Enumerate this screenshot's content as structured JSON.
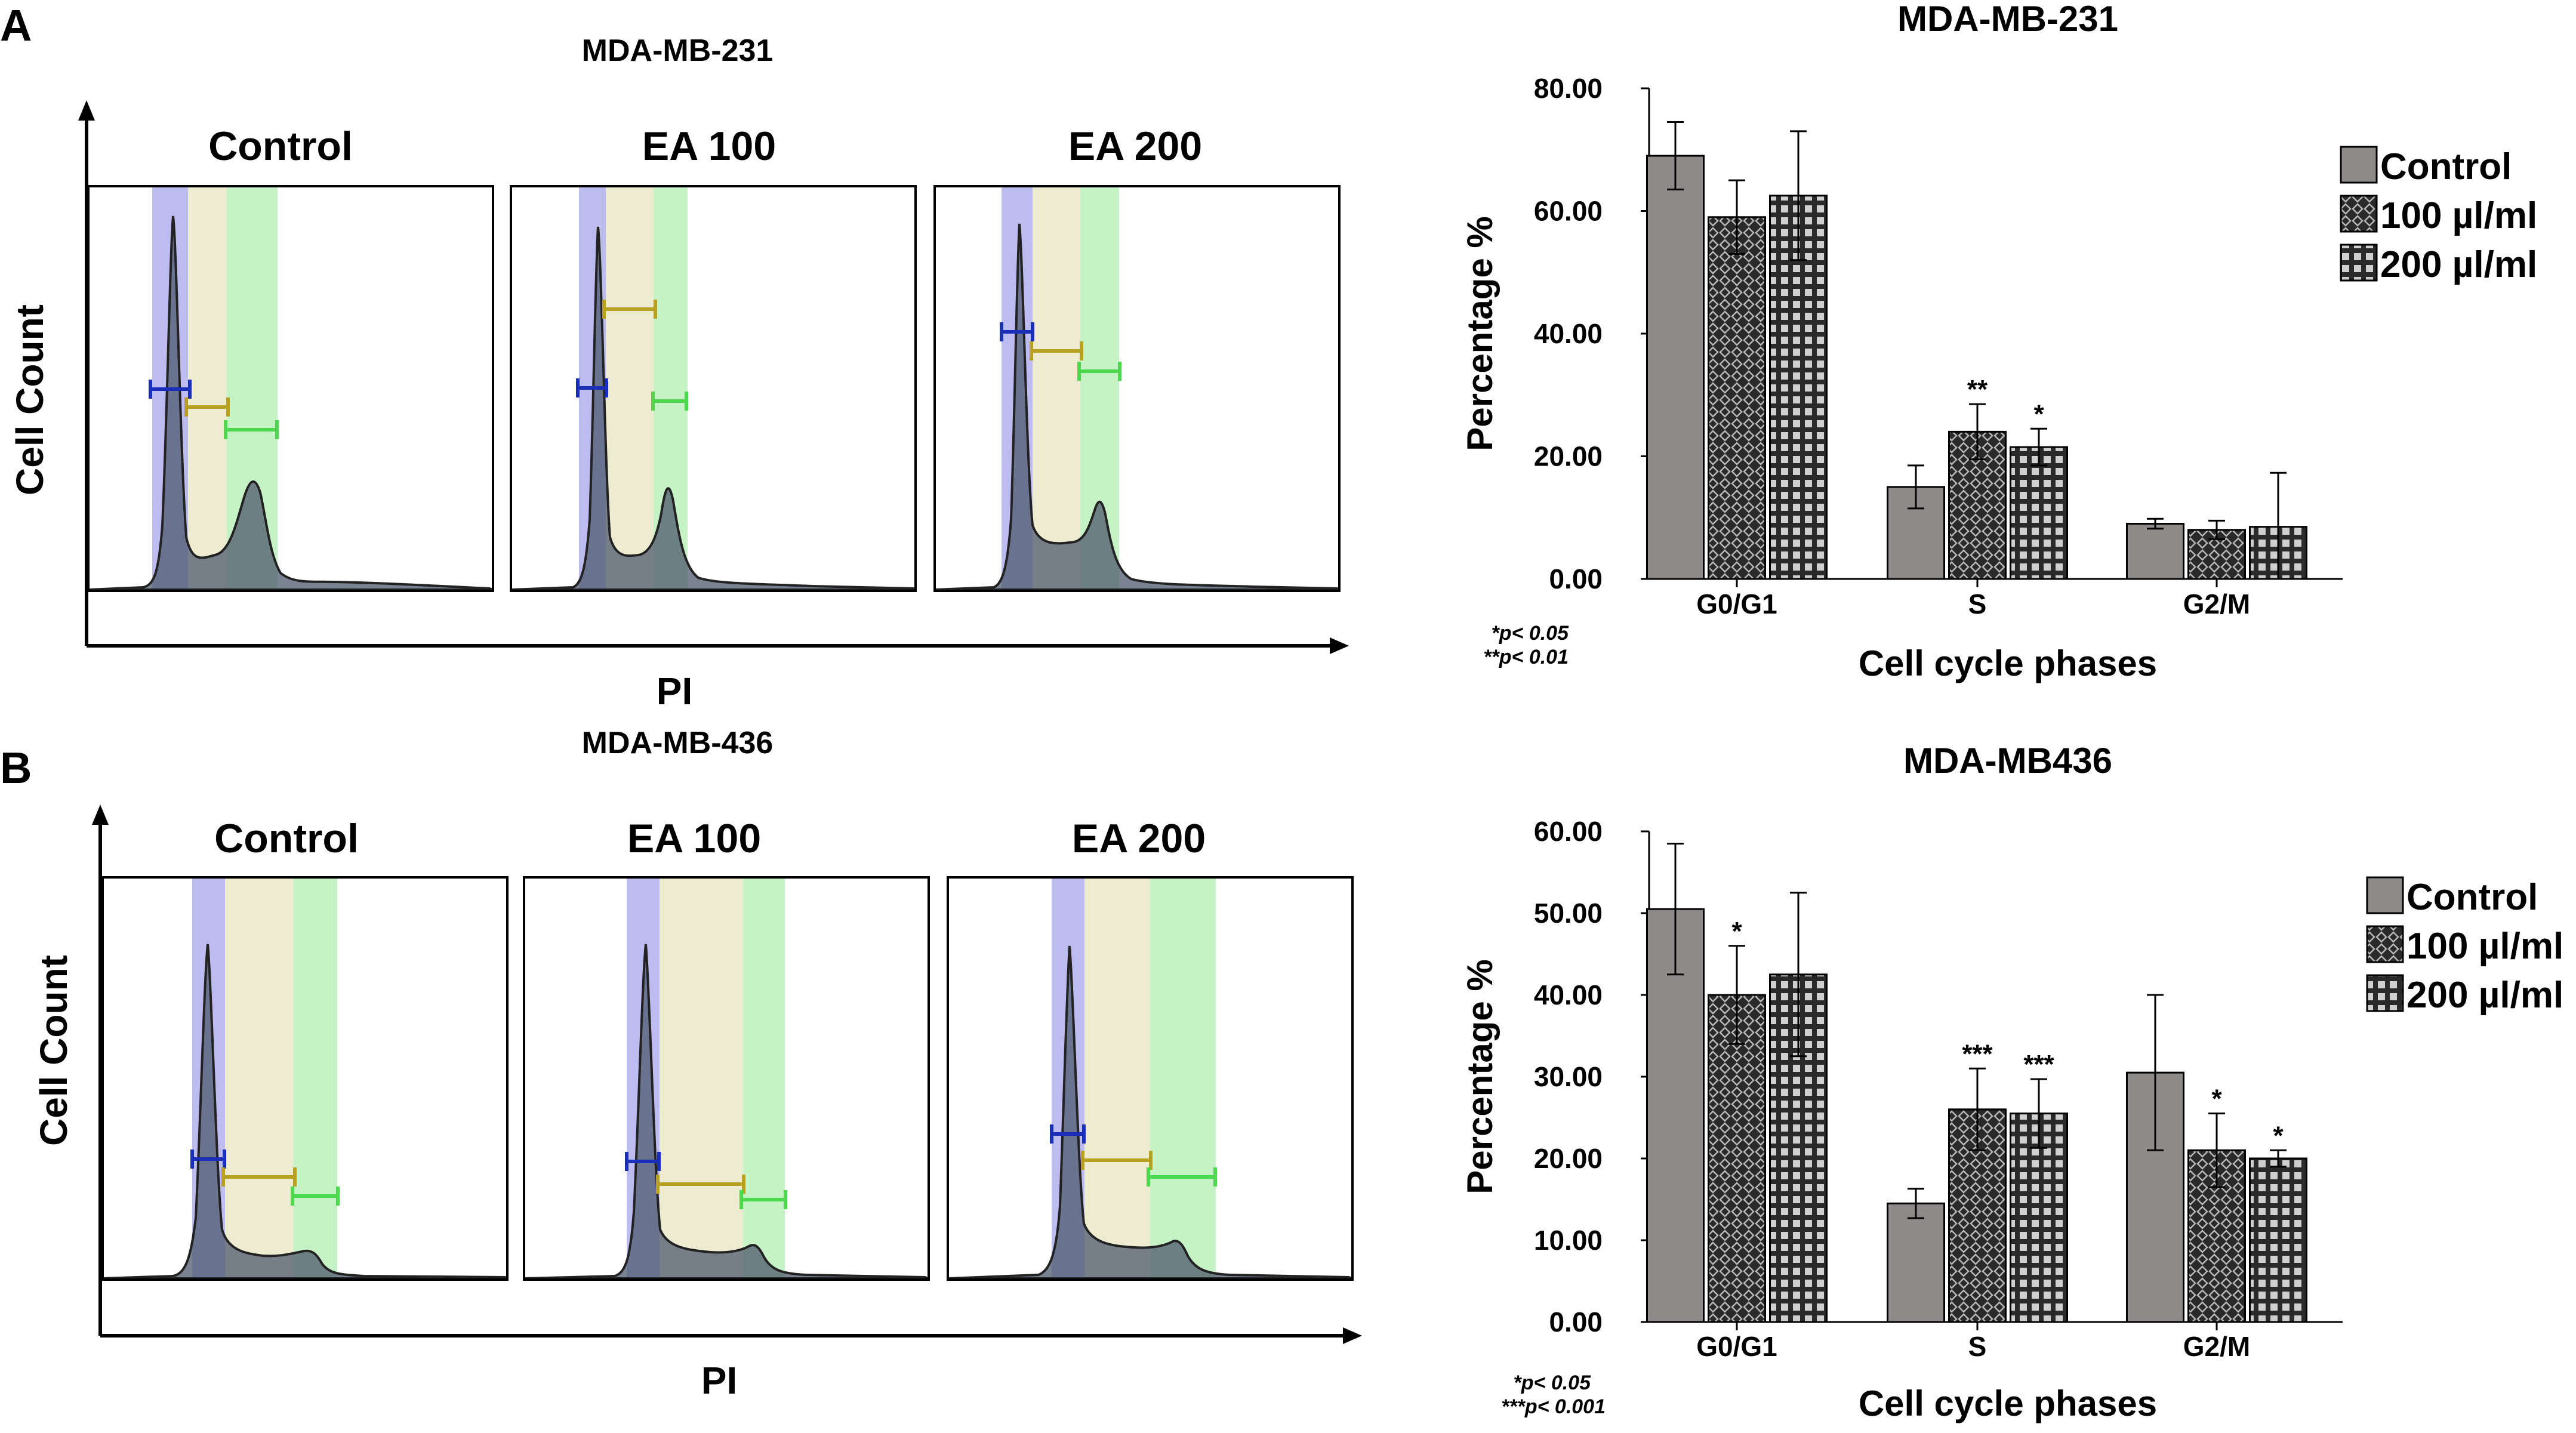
{
  "panel_a": {
    "letter": "A",
    "histograms": {
      "title": "MDA-MB-231",
      "xlabel": "PI",
      "ylabel": "Cell Count",
      "panels": [
        "Control",
        "EA 100",
        "EA 200"
      ]
    },
    "footnote": [
      "*p< 0.05",
      "**p< 0.01"
    ]
  },
  "panel_b": {
    "letter": "B",
    "histograms": {
      "title": "MDA-MB-436",
      "xlabel": "PI",
      "ylabel": "Cell Count",
      "panels": [
        "Control",
        "EA 100",
        "EA 200"
      ]
    },
    "footnote": [
      "*p< 0.05",
      "***p< 0.001"
    ]
  },
  "colors": {
    "control_bar": "#8f8a8a",
    "treated_bar": "#2a2a2a",
    "g0g1_gate": "#6a6ae0",
    "s_gate": "#d8d49a",
    "g2m_gate": "#8ee88e",
    "histogram_fill": "#4d5a6e",
    "marker_g0g1": "#1a2fb8",
    "marker_s": "#b8a020",
    "marker_g2m": "#4ed84e"
  },
  "chart_data": [
    {
      "type": "bar",
      "title": "MDA-MB-231",
      "xlabel": "Cell cycle phases",
      "ylabel": "Percentage %",
      "categories": [
        "G0/G1",
        "S",
        "G2/M"
      ],
      "ylim": [
        0,
        80
      ],
      "yticks": [
        "0.00",
        "20.00",
        "40.00",
        "60.00",
        "80.00"
      ],
      "legend": "right",
      "series": [
        {
          "name": "Control",
          "values": [
            69,
            15,
            9
          ],
          "errors": [
            5.5,
            3.5,
            0.8
          ],
          "stars": [
            "",
            "",
            ""
          ]
        },
        {
          "name": "100 µl/ml",
          "values": [
            59,
            24,
            8
          ],
          "errors": [
            6,
            4.5,
            1.5
          ],
          "stars": [
            "",
            "**",
            ""
          ]
        },
        {
          "name": "200 µl/ml",
          "values": [
            62.5,
            21.5,
            8.5
          ],
          "errors": [
            10.5,
            3,
            8.8
          ],
          "stars": [
            "",
            "*",
            ""
          ]
        }
      ]
    },
    {
      "type": "bar",
      "title": "MDA-MB436",
      "xlabel": "Cell cycle phases",
      "ylabel": "Percentage %",
      "categories": [
        "G0/G1",
        "S",
        "G2/M"
      ],
      "ylim": [
        0,
        60
      ],
      "yticks": [
        "0.00",
        "10.00",
        "20.00",
        "30.00",
        "40.00",
        "50.00",
        "60.00"
      ],
      "legend": "right",
      "series": [
        {
          "name": "Control",
          "values": [
            50.5,
            14.5,
            30.5
          ],
          "errors": [
            8,
            1.8,
            9.5
          ],
          "stars": [
            "",
            "",
            ""
          ]
        },
        {
          "name": "100 µl/ml",
          "values": [
            40,
            26,
            21
          ],
          "errors": [
            6,
            5,
            4.5
          ],
          "stars": [
            "*",
            "***",
            "*"
          ]
        },
        {
          "name": "200 µl/ml",
          "values": [
            42.5,
            25.5,
            20
          ],
          "errors": [
            10,
            4.2,
            1
          ],
          "stars": [
            "",
            "***",
            "*"
          ]
        }
      ]
    }
  ]
}
